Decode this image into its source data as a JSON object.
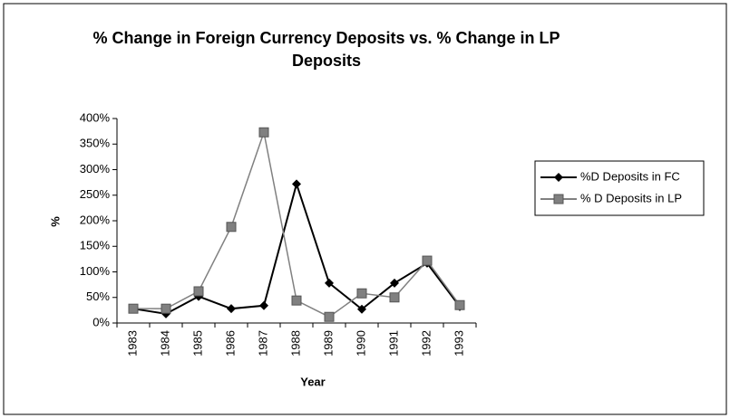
{
  "chart_data": {
    "type": "line",
    "title": "% Change in Foreign Currency Deposits vs. % Change in LP Deposits",
    "x_label": "Year",
    "y_label": "%",
    "categories": [
      "1983",
      "1984",
      "1985",
      "1986",
      "1987",
      "1988",
      "1989",
      "1990",
      "1991",
      "1992",
      "1993"
    ],
    "series": [
      {
        "name": "%D Deposits in FC",
        "color": "#000000",
        "marker": "diamond",
        "values": [
          28,
          18,
          52,
          28,
          34,
          272,
          78,
          27,
          78,
          117,
          32
        ]
      },
      {
        "name": "% D Deposits in LP",
        "color": "#808080",
        "marker": "square",
        "values": [
          28,
          28,
          62,
          188,
          373,
          44,
          12,
          58,
          50,
          122,
          35
        ]
      }
    ],
    "ylim": [
      0,
      400
    ],
    "yticks": [
      {
        "value": 0,
        "label": "0%"
      },
      {
        "value": 50,
        "label": "50%"
      },
      {
        "value": 100,
        "label": "100%"
      },
      {
        "value": 150,
        "label": "150%"
      },
      {
        "value": 200,
        "label": "200%"
      },
      {
        "value": 250,
        "label": "250%"
      },
      {
        "value": 300,
        "label": "300%"
      },
      {
        "value": 350,
        "label": "350%"
      },
      {
        "value": 400,
        "label": "400%"
      }
    ],
    "grid": false,
    "legend": "right"
  }
}
